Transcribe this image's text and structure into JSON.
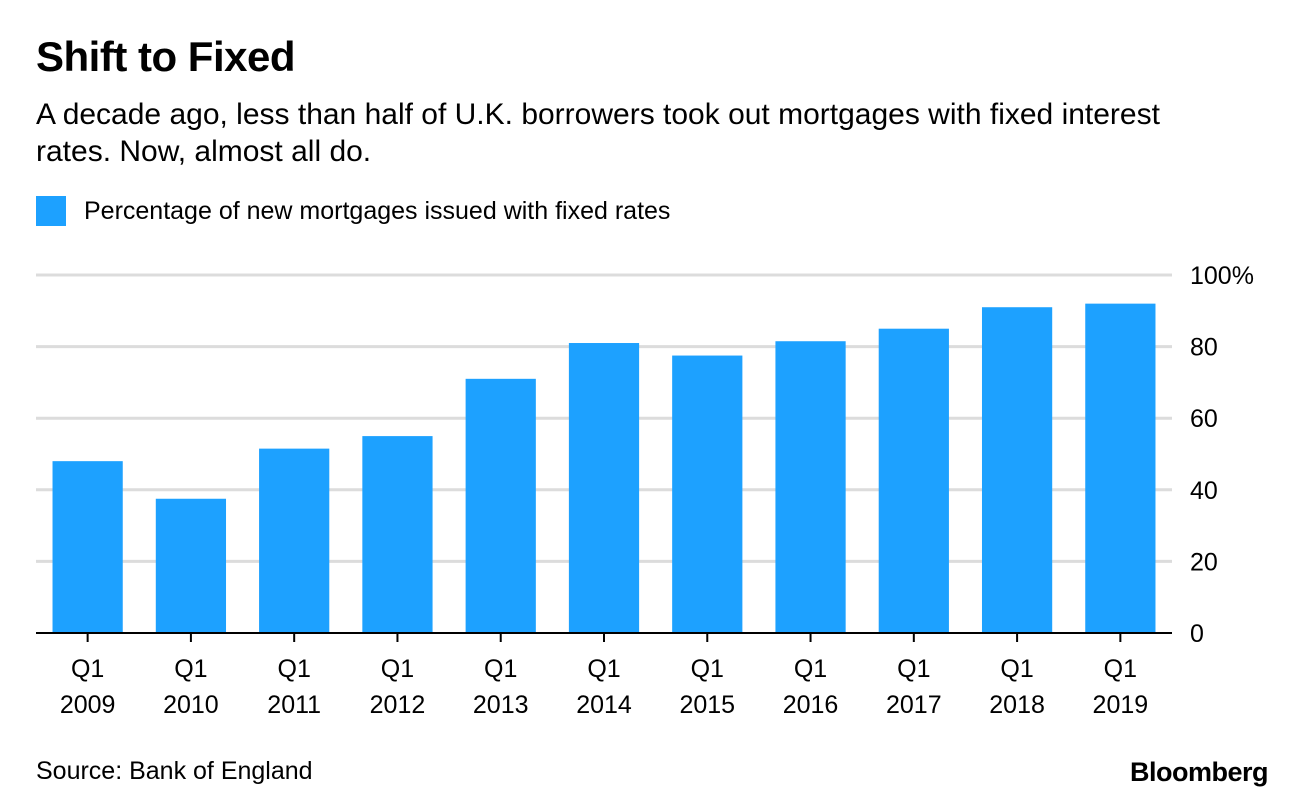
{
  "header": {
    "title": "Shift to Fixed",
    "subtitle": "A decade ago, less than half of U.K. borrowers took out mortgages with fixed interest rates. Now, almost all do."
  },
  "legend": {
    "label": "Percentage of new mortgages issued with fixed rates"
  },
  "footer": {
    "source": "Source: Bank of England",
    "brand": "Bloomberg"
  },
  "colors": {
    "bar": "#1da1ff",
    "grid": "#dcdcdc",
    "axis": "#000000",
    "text": "#000000"
  },
  "chart_data": {
    "type": "bar",
    "title": "Shift to Fixed",
    "xlabel": "",
    "ylabel": "",
    "ylim": [
      0,
      100
    ],
    "yticks": [
      0,
      20,
      40,
      60,
      80,
      100
    ],
    "ytick_labels": [
      "0",
      "20",
      "40",
      "60",
      "80",
      "100%"
    ],
    "y_axis_side": "right",
    "grid": true,
    "legend_position": "top-left",
    "categories": [
      [
        "Q1",
        "2009"
      ],
      [
        "Q1",
        "2010"
      ],
      [
        "Q1",
        "2011"
      ],
      [
        "Q1",
        "2012"
      ],
      [
        "Q1",
        "2013"
      ],
      [
        "Q1",
        "2014"
      ],
      [
        "Q1",
        "2015"
      ],
      [
        "Q1",
        "2016"
      ],
      [
        "Q1",
        "2017"
      ],
      [
        "Q1",
        "2018"
      ],
      [
        "Q1",
        "2019"
      ]
    ],
    "series": [
      {
        "name": "Percentage of new mortgages issued with fixed rates",
        "values": [
          48,
          37.5,
          51.5,
          55,
          71,
          81,
          77.5,
          81.5,
          85,
          91,
          92
        ]
      }
    ]
  }
}
